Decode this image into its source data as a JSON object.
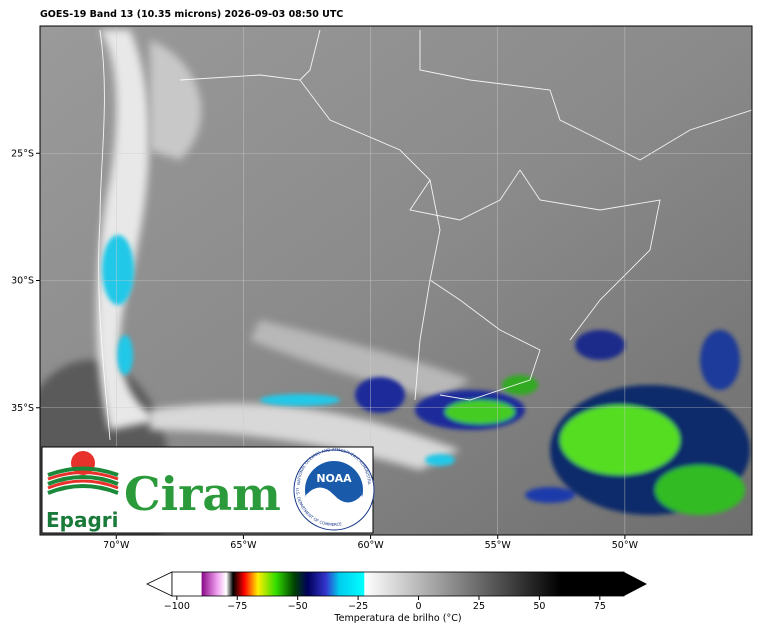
{
  "title": "GOES-19 Band 13 (10.35 microns) 2026-09-03 08:50 UTC",
  "map": {
    "xlim": [
      -73,
      -45
    ],
    "ylim": [
      -40,
      -20
    ],
    "lon_ticks": [
      {
        "value": -70,
        "label": "70°W"
      },
      {
        "value": -65,
        "label": "65°W"
      },
      {
        "value": -60,
        "label": "60°W"
      },
      {
        "value": -55,
        "label": "55°W"
      },
      {
        "value": -50,
        "label": "50°W"
      }
    ],
    "lat_ticks": [
      {
        "value": -25,
        "label": "25°S"
      },
      {
        "value": -30,
        "label": "30°S"
      },
      {
        "value": -35,
        "label": "35°S"
      }
    ]
  },
  "logos": {
    "epagri": "Epagri",
    "ciram": "Ciram",
    "noaa": "NOAA",
    "noaa_ring_top": "NATIONAL OCEANIC AND ATMOSPHERIC ADMINISTRATION",
    "noaa_ring_bottom": "U.S. DEPARTMENT OF COMMERCE"
  },
  "colorbar": {
    "label": "Temperatura de brilho (°C)",
    "lim": [
      -102,
      85
    ],
    "ticks": [
      {
        "value": -100,
        "label": "−100"
      },
      {
        "value": -75,
        "label": "−75"
      },
      {
        "value": -50,
        "label": "−50"
      },
      {
        "value": -25,
        "label": "−25"
      },
      0,
      25,
      50,
      75
    ]
  }
}
